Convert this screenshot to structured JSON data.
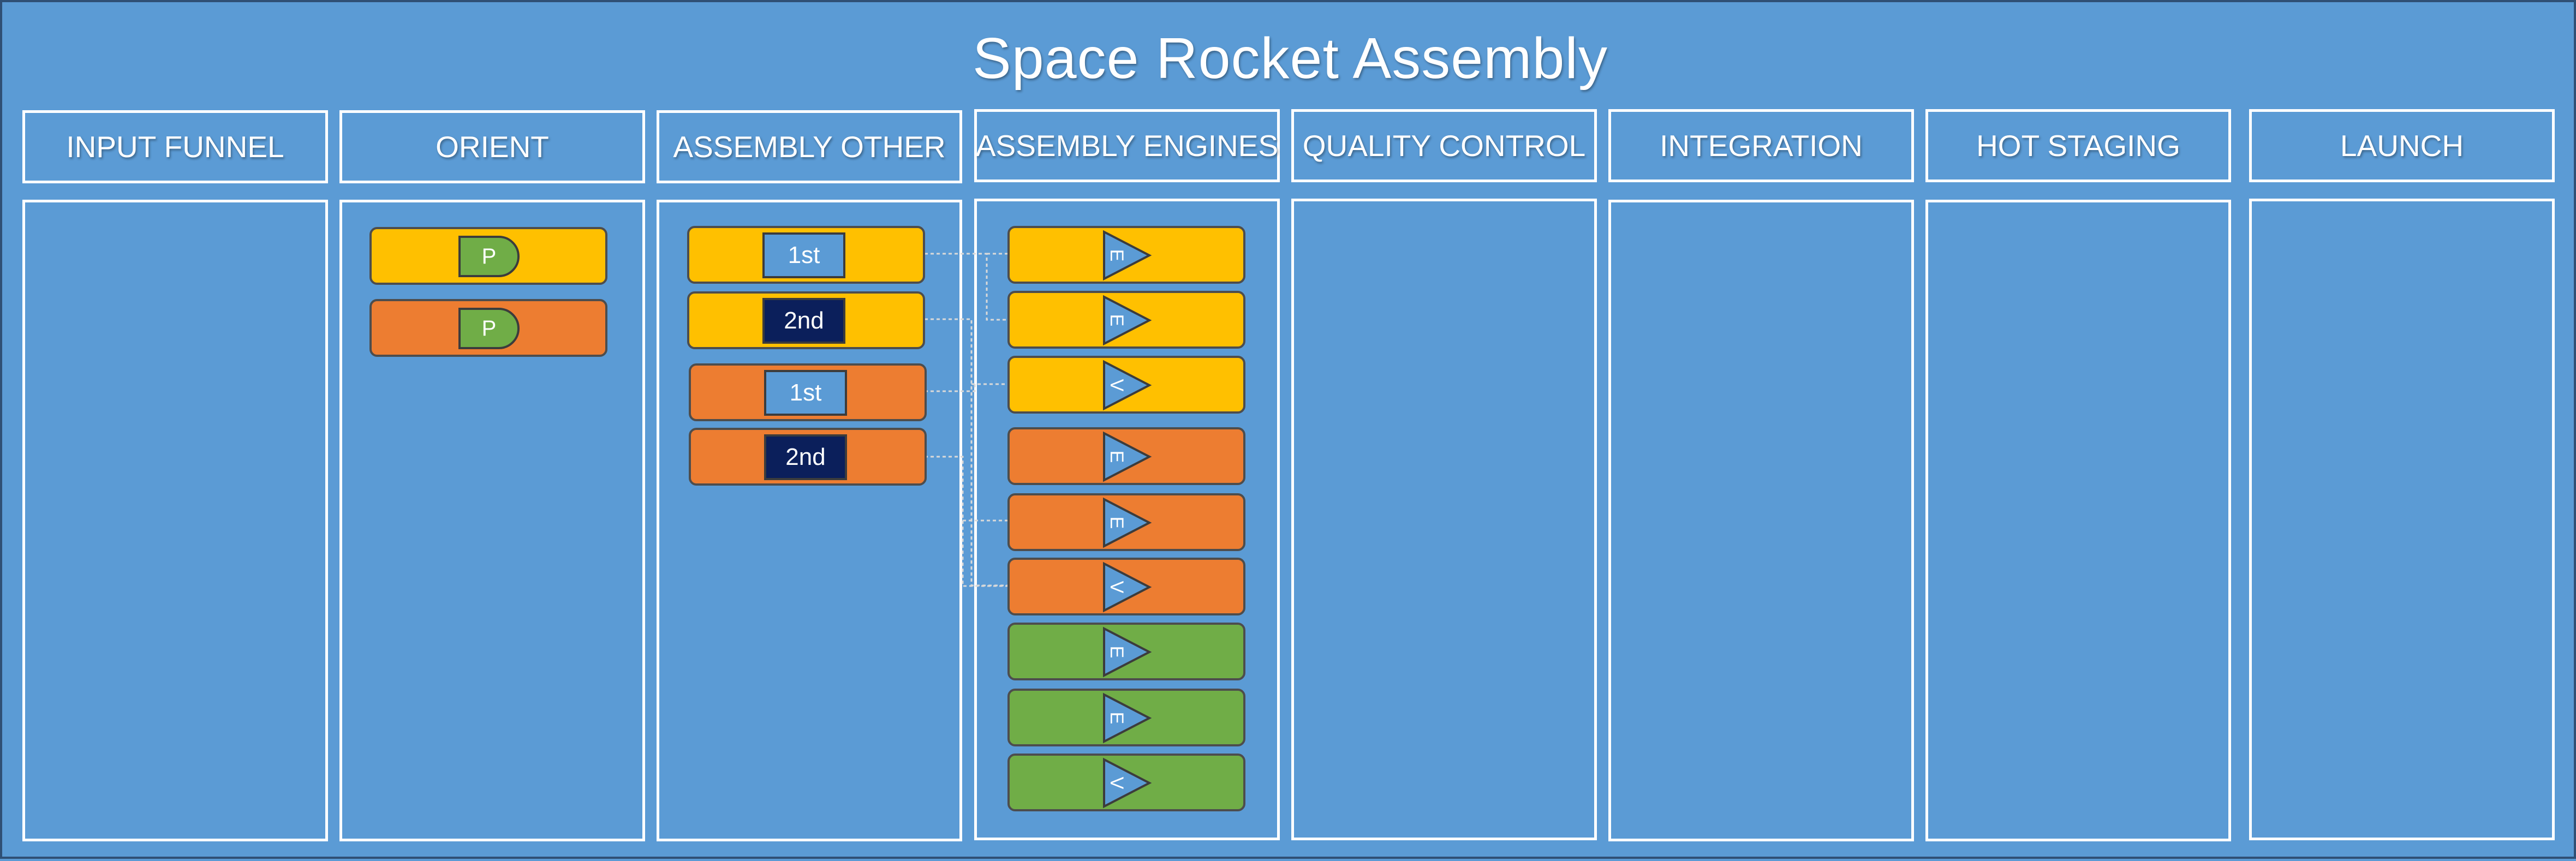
{
  "title": "Space Rocket Assembly",
  "columns": [
    {
      "label": "INPUT FUNNEL"
    },
    {
      "label": "ORIENT"
    },
    {
      "label": "ASSEMBLY OTHER"
    },
    {
      "label": "ASSEMBLY ENGINES"
    },
    {
      "label": "QUALITY CONTROL"
    },
    {
      "label": "INTEGRATION"
    },
    {
      "label": "HOT STAGING"
    },
    {
      "label": "LAUNCH"
    }
  ],
  "orient_cards": [
    {
      "color": "yellow",
      "label": "P"
    },
    {
      "color": "orange",
      "label": "P"
    }
  ],
  "assembly_other_cards": [
    {
      "color": "yellow",
      "label": "1st",
      "tag": "light"
    },
    {
      "color": "yellow",
      "label": "2nd",
      "tag": "dark"
    },
    {
      "color": "orange",
      "label": "1st",
      "tag": "light"
    },
    {
      "color": "orange",
      "label": "2nd",
      "tag": "dark"
    }
  ],
  "engine_cards": [
    {
      "color": "yellow",
      "label": "E"
    },
    {
      "color": "yellow",
      "label": "E"
    },
    {
      "color": "yellow",
      "label": "V"
    },
    {
      "color": "orange",
      "label": "E"
    },
    {
      "color": "orange",
      "label": "E"
    },
    {
      "color": "orange",
      "label": "V"
    },
    {
      "color": "green",
      "label": "E"
    },
    {
      "color": "green",
      "label": "E"
    },
    {
      "color": "green",
      "label": "V"
    }
  ],
  "colors": {
    "background": "#5b9bd5",
    "yellow": "#ffc000",
    "orange": "#ed7d31",
    "green": "#70ad47",
    "dark_tag": "#0b1f5b",
    "border": "#ffffff"
  }
}
